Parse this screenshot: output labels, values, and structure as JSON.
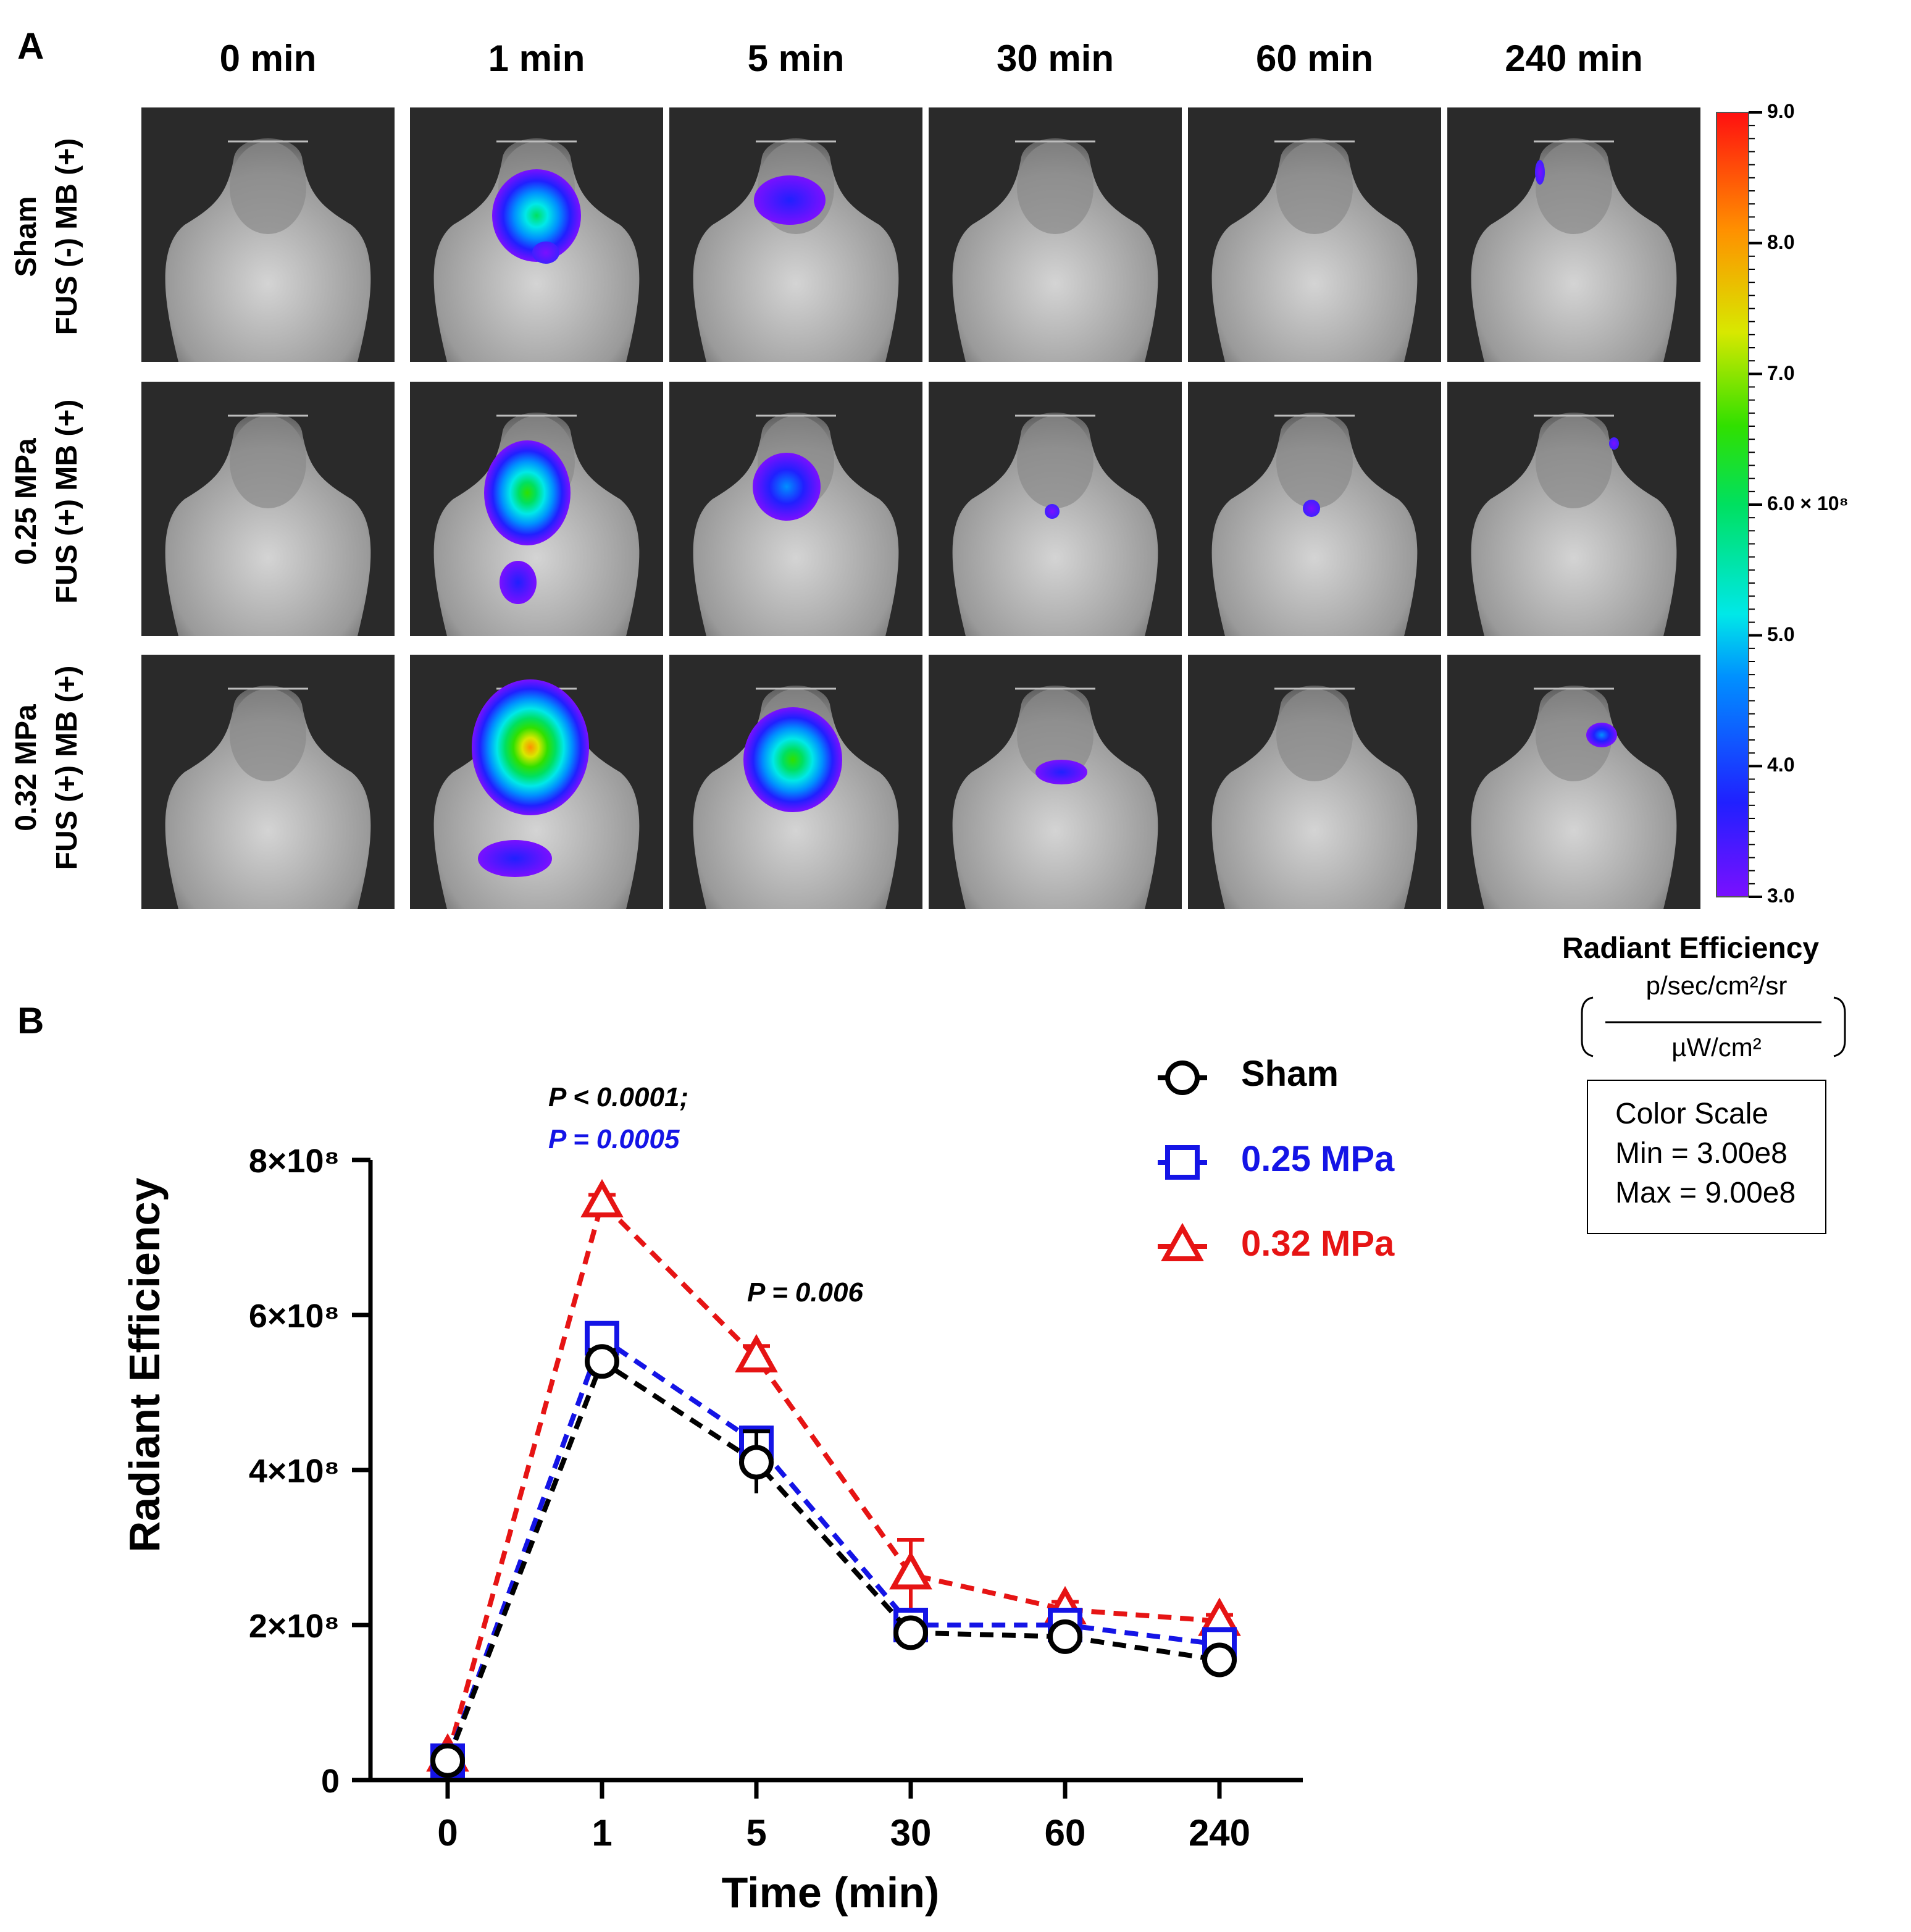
{
  "panel_a": {
    "letter": "A",
    "time_headers": [
      "0 min",
      "1 min",
      "5 min",
      "30 min",
      "60 min",
      "240 min"
    ],
    "row_labels": [
      {
        "line1": "Sham",
        "line2": "FUS (-) MB (+)"
      },
      {
        "line1": "0.25 MPa",
        "line2": "FUS (+) MB (+)"
      },
      {
        "line1": "0.32 MPa",
        "line2": "FUS (+) MB (+)"
      }
    ],
    "colorbar": {
      "ticks": [
        "9.0",
        "8.0",
        "7.0",
        "6.0 × 10⁸",
        "5.0",
        "4.0",
        "3.0"
      ],
      "title": "Radiant Efficiency",
      "unit_numerator": "p/sec/cm²/sr",
      "unit_denominator": "µW/cm²",
      "scale_title": "Color Scale",
      "scale_min": "Min = 3.00e8",
      "scale_max": "Max = 9.00e8"
    }
  },
  "panel_b": {
    "letter": "B",
    "annotation_1a": "P < 0.0001;",
    "annotation_1b": "P = 0.0005",
    "annotation_5": "P = 0.006"
  },
  "colors": {
    "sham": "#000000",
    "mpa025": "#1414e6",
    "mpa032": "#e61414"
  },
  "chart_data": {
    "type": "line",
    "title": "",
    "xlabel": "Time (min)",
    "ylabel": "Radiant Efficiency",
    "categories": [
      "0",
      "1",
      "5",
      "30",
      "60",
      "240"
    ],
    "ylim": [
      0,
      800000000
    ],
    "yticks": [
      0,
      200000000,
      400000000,
      600000000,
      800000000
    ],
    "ytick_labels": [
      "0",
      "2×10⁸",
      "4×10⁸",
      "6×10⁸",
      "8×10⁸"
    ],
    "legend_position": "top-right",
    "series": [
      {
        "name": "Sham",
        "marker": "circle",
        "values": [
          25000000,
          540000000,
          410000000,
          190000000,
          185000000,
          155000000
        ],
        "errors": [
          5000000,
          15000000,
          40000000,
          10000000,
          8000000,
          8000000
        ]
      },
      {
        "name": "0.25 MPa",
        "marker": "square",
        "values": [
          25000000,
          570000000,
          435000000,
          200000000,
          200000000,
          175000000
        ],
        "errors": [
          5000000,
          15000000,
          20000000,
          10000000,
          8000000,
          8000000
        ]
      },
      {
        "name": "0.32 MPa",
        "marker": "triangle",
        "values": [
          30000000,
          745000000,
          545000000,
          265000000,
          220000000,
          205000000
        ],
        "errors": [
          5000000,
          10000000,
          15000000,
          45000000,
          10000000,
          8000000
        ]
      }
    ]
  }
}
